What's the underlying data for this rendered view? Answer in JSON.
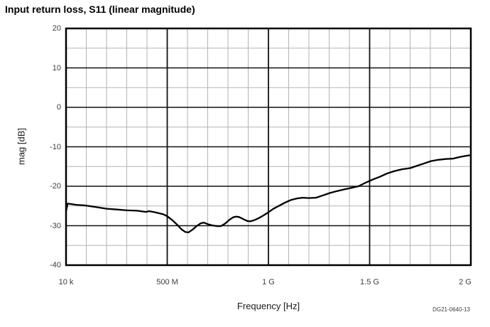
{
  "title": "Input return loss, S11 (linear magnitude)",
  "figure_id": "DG21-0640-13",
  "colors": {
    "background": "#ffffff",
    "curve": "#000000",
    "border": "#000000",
    "major_grid": "#111111",
    "minor_grid": "#b3b3b3",
    "tick_text": "#3d3d3d",
    "title_text": "#000000"
  },
  "chart_data": {
    "type": "line",
    "title": "Input return loss, S11 (linear magnitude)",
    "xlabel": "Frequency [Hz]",
    "ylabel": "mag [dB]",
    "grid": "on",
    "legend": "none",
    "x_axis": {
      "scale": "linear",
      "min_hz": 10000,
      "max_hz": 2000000000,
      "minor_grid_step_hz": 100000000,
      "major_grid_step_hz": 500000000,
      "ticks": [
        {
          "label": "10 k",
          "hz": 10000
        },
        {
          "label": "500 M",
          "hz": 500000000
        },
        {
          "label": "1 G",
          "hz": 1000000000
        },
        {
          "label": "1.5 G",
          "hz": 1500000000
        },
        {
          "label": "2 G",
          "hz": 2000000000
        }
      ]
    },
    "y_axis": {
      "min": -40,
      "max": 20,
      "tick_step": 10,
      "minor_grid_step": 5,
      "tick_labels": [
        "20",
        "10",
        "0",
        "-10",
        "-20",
        "-30",
        "-40"
      ]
    },
    "series": [
      {
        "name": "S11 magnitude",
        "color": "#000000",
        "points_mhz_db": [
          [
            0.01,
            -26.3
          ],
          [
            8,
            -24.4
          ],
          [
            50,
            -24.7
          ],
          [
            100,
            -24.9
          ],
          [
            150,
            -25.3
          ],
          [
            200,
            -25.7
          ],
          [
            250,
            -25.9
          ],
          [
            300,
            -26.1
          ],
          [
            350,
            -26.2
          ],
          [
            395,
            -26.5
          ],
          [
            410,
            -26.3
          ],
          [
            440,
            -26.6
          ],
          [
            480,
            -27.1
          ],
          [
            500,
            -27.6
          ],
          [
            525,
            -28.6
          ],
          [
            550,
            -29.8
          ],
          [
            570,
            -30.9
          ],
          [
            590,
            -31.6
          ],
          [
            605,
            -31.7
          ],
          [
            625,
            -31.0
          ],
          [
            645,
            -30.1
          ],
          [
            665,
            -29.4
          ],
          [
            680,
            -29.2
          ],
          [
            700,
            -29.6
          ],
          [
            720,
            -29.9
          ],
          [
            745,
            -30.1
          ],
          [
            765,
            -30.1
          ],
          [
            785,
            -29.5
          ],
          [
            805,
            -28.6
          ],
          [
            825,
            -27.9
          ],
          [
            840,
            -27.7
          ],
          [
            855,
            -27.8
          ],
          [
            875,
            -28.3
          ],
          [
            895,
            -28.8
          ],
          [
            910,
            -28.9
          ],
          [
            930,
            -28.6
          ],
          [
            955,
            -28.0
          ],
          [
            975,
            -27.4
          ],
          [
            1000,
            -26.6
          ],
          [
            1025,
            -25.7
          ],
          [
            1050,
            -25.0
          ],
          [
            1080,
            -24.2
          ],
          [
            1110,
            -23.5
          ],
          [
            1140,
            -23.1
          ],
          [
            1170,
            -22.9
          ],
          [
            1200,
            -23.0
          ],
          [
            1235,
            -22.9
          ],
          [
            1270,
            -22.3
          ],
          [
            1305,
            -21.7
          ],
          [
            1340,
            -21.2
          ],
          [
            1375,
            -20.8
          ],
          [
            1410,
            -20.4
          ],
          [
            1445,
            -20.0
          ],
          [
            1480,
            -19.1
          ],
          [
            1515,
            -18.3
          ],
          [
            1550,
            -17.6
          ],
          [
            1585,
            -16.8
          ],
          [
            1620,
            -16.2
          ],
          [
            1660,
            -15.7
          ],
          [
            1700,
            -15.4
          ],
          [
            1735,
            -14.8
          ],
          [
            1770,
            -14.2
          ],
          [
            1805,
            -13.6
          ],
          [
            1840,
            -13.3
          ],
          [
            1875,
            -13.1
          ],
          [
            1910,
            -13.0
          ],
          [
            1945,
            -12.6
          ],
          [
            1975,
            -12.3
          ],
          [
            2000,
            -12.1
          ]
        ]
      }
    ]
  }
}
